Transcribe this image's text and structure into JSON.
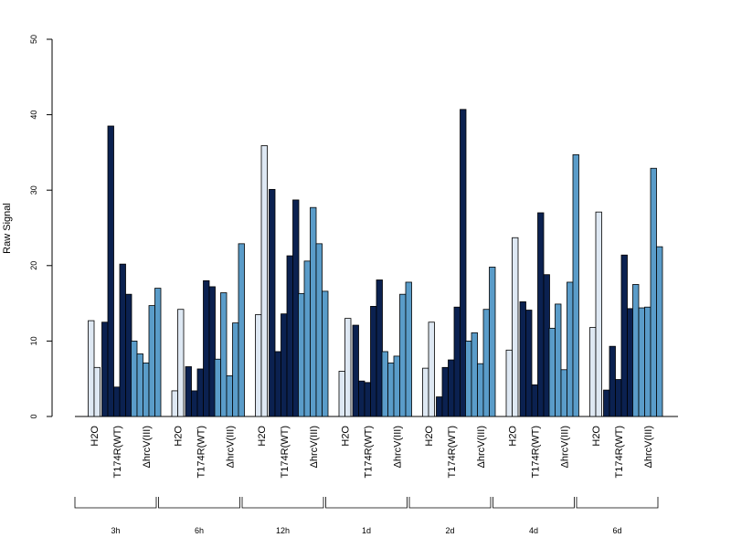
{
  "chart_data": {
    "type": "bar",
    "ylabel": "Raw Signal",
    "ylim": [
      0,
      50
    ],
    "yticks": [
      0,
      10,
      20,
      30,
      40,
      50
    ],
    "conditions": [
      "H2O",
      "T174R(WT)",
      "ΔhrcV(III)"
    ],
    "condition_colors": [
      "#dee8f3",
      "#0b2150",
      "#5a9cc9"
    ],
    "timepoints": [
      {
        "label": "3h",
        "groups": [
          [
            12.7,
            6.5
          ],
          [
            12.5,
            38.5,
            3.9,
            20.2,
            16.2
          ],
          [
            10.0,
            8.3,
            7.1,
            14.7,
            17.0
          ]
        ]
      },
      {
        "label": "6h",
        "groups": [
          [
            3.4,
            14.2
          ],
          [
            6.6,
            3.4,
            6.3,
            18.0,
            17.2
          ],
          [
            7.6,
            16.4,
            5.4,
            12.4,
            22.9
          ]
        ]
      },
      {
        "label": "12h",
        "groups": [
          [
            13.5,
            35.9
          ],
          [
            30.1,
            8.6,
            13.6,
            21.3,
            28.7
          ],
          [
            16.3,
            20.6,
            27.7,
            22.9,
            16.6
          ]
        ]
      },
      {
        "label": "1d",
        "groups": [
          [
            6.0,
            13.0
          ],
          [
            12.1,
            4.7,
            4.5,
            14.6,
            18.1
          ],
          [
            8.6,
            7.1,
            8.0,
            16.2,
            17.8
          ]
        ]
      },
      {
        "label": "2d",
        "groups": [
          [
            6.4,
            12.5
          ],
          [
            2.6,
            6.5,
            7.5,
            14.5,
            40.7
          ],
          [
            10.0,
            11.1,
            7.0,
            14.2,
            19.8
          ]
        ]
      },
      {
        "label": "4d",
        "groups": [
          [
            8.8,
            23.7
          ],
          [
            15.2,
            14.1,
            4.2,
            27.0,
            18.8
          ],
          [
            11.7,
            14.9,
            6.2,
            17.8,
            34.7
          ]
        ]
      },
      {
        "label": "6d",
        "groups": [
          [
            11.8,
            27.1
          ],
          [
            3.5,
            9.3,
            4.9,
            21.4,
            14.3
          ],
          [
            17.5,
            14.4,
            14.5,
            32.9,
            22.5
          ]
        ]
      }
    ]
  }
}
